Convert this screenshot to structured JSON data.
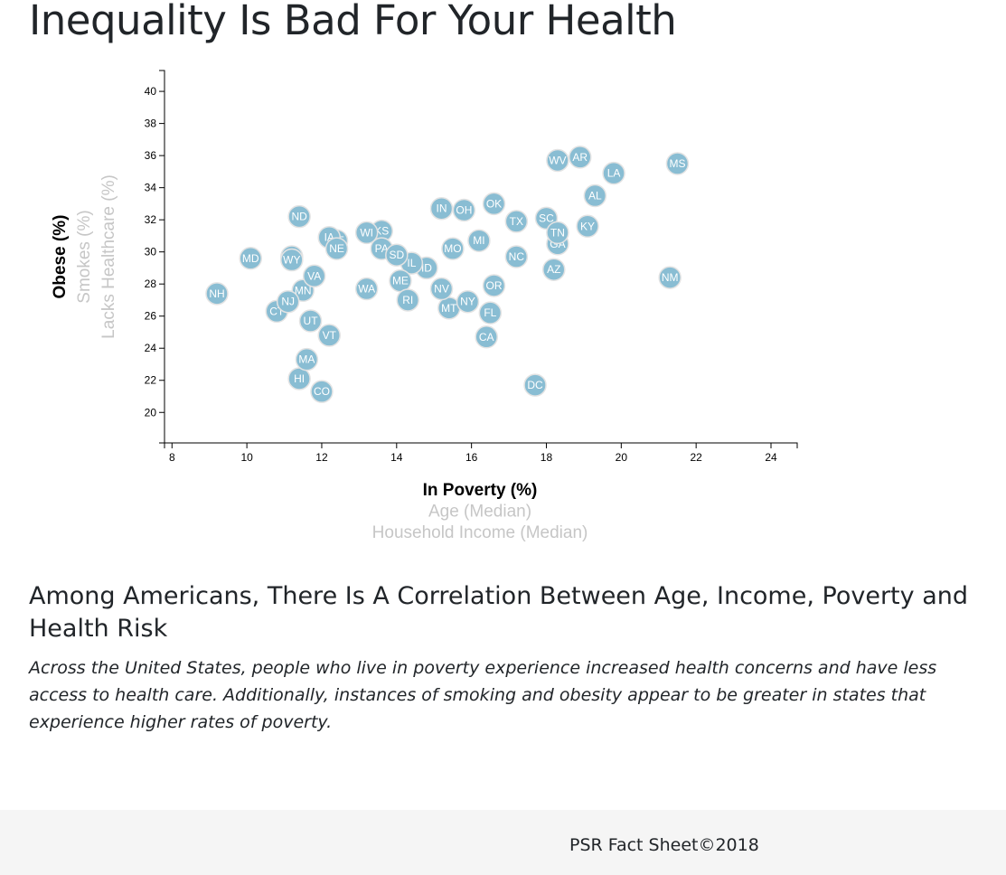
{
  "page": {
    "title": "Inequality Is Bad For Your Health",
    "subheading": "Among Americans, There Is A Correlation Between Age, Income, Poverty and Health Risk",
    "description": "Across the United States, people who live in poverty experience increased health concerns and have less access to health care. Additionally, instances of smoking and obesity appear to be greater in states that experience higher rates of poverty.",
    "footer": "PSR Fact Sheet©2018"
  },
  "colors": {
    "point_fill": "#89bdd3",
    "point_stroke": "#e3e3e3",
    "active_axis_label": "#000000",
    "inactive_axis_label": "#c6c6c6",
    "footer_background": "#f5f5f5"
  },
  "chart_data": {
    "type": "scatter",
    "title": "",
    "x_axis_options": [
      {
        "label": "In Poverty (%)",
        "active": true
      },
      {
        "label": "Age (Median)",
        "active": false
      },
      {
        "label": "Household Income (Median)",
        "active": false
      }
    ],
    "y_axis_options": [
      {
        "label": "Obese (%)",
        "active": true
      },
      {
        "label": "Smokes (%)",
        "active": false
      },
      {
        "label": "Lacks Healthcare (%)",
        "active": false
      }
    ],
    "xlabel": "In Poverty (%)",
    "ylabel": "Obese (%)",
    "xlim": [
      7.8,
      24.7
    ],
    "ylim": [
      18.1,
      41.3
    ],
    "x_ticks": [
      8,
      10,
      12,
      14,
      16,
      18,
      20,
      22,
      24
    ],
    "y_ticks": [
      20,
      22,
      24,
      26,
      28,
      30,
      32,
      34,
      36,
      38,
      40
    ],
    "grid": false,
    "legend": "none",
    "points": [
      {
        "label": "AL",
        "x": 19.3,
        "y": 33.5
      },
      {
        "label": "AK",
        "x": 11.2,
        "y": 29.7
      },
      {
        "label": "AZ",
        "x": 18.2,
        "y": 28.9
      },
      {
        "label": "AR",
        "x": 18.9,
        "y": 35.9
      },
      {
        "label": "CA",
        "x": 16.4,
        "y": 24.7
      },
      {
        "label": "CO",
        "x": 12.0,
        "y": 21.3
      },
      {
        "label": "CT",
        "x": 10.8,
        "y": 26.3
      },
      {
        "label": "DE",
        "x": 12.4,
        "y": 30.7
      },
      {
        "label": "DC",
        "x": 17.7,
        "y": 21.7
      },
      {
        "label": "FL",
        "x": 16.5,
        "y": 26.2
      },
      {
        "label": "GA",
        "x": 18.3,
        "y": 30.5
      },
      {
        "label": "HI",
        "x": 11.4,
        "y": 22.1
      },
      {
        "label": "ID",
        "x": 14.8,
        "y": 29.0
      },
      {
        "label": "IL",
        "x": 14.4,
        "y": 29.3
      },
      {
        "label": "IN",
        "x": 15.2,
        "y": 32.7
      },
      {
        "label": "IA",
        "x": 12.2,
        "y": 30.9
      },
      {
        "label": "KS",
        "x": 13.6,
        "y": 31.3
      },
      {
        "label": "KY",
        "x": 19.1,
        "y": 31.6
      },
      {
        "label": "LA",
        "x": 19.8,
        "y": 34.9
      },
      {
        "label": "ME",
        "x": 14.1,
        "y": 28.2
      },
      {
        "label": "MD",
        "x": 10.1,
        "y": 29.6
      },
      {
        "label": "MA",
        "x": 11.6,
        "y": 23.3
      },
      {
        "label": "MI",
        "x": 16.2,
        "y": 30.7
      },
      {
        "label": "MN",
        "x": 11.5,
        "y": 27.6
      },
      {
        "label": "MS",
        "x": 21.5,
        "y": 35.5
      },
      {
        "label": "MO",
        "x": 15.5,
        "y": 30.2
      },
      {
        "label": "MT",
        "x": 15.4,
        "y": 26.5
      },
      {
        "label": "NE",
        "x": 12.4,
        "y": 30.2
      },
      {
        "label": "NV",
        "x": 15.2,
        "y": 27.7
      },
      {
        "label": "NH",
        "x": 9.2,
        "y": 27.4
      },
      {
        "label": "NJ",
        "x": 11.1,
        "y": 26.9
      },
      {
        "label": "NM",
        "x": 21.3,
        "y": 28.4
      },
      {
        "label": "NY",
        "x": 15.9,
        "y": 26.9
      },
      {
        "label": "NC",
        "x": 17.2,
        "y": 29.7
      },
      {
        "label": "ND",
        "x": 11.4,
        "y": 32.2
      },
      {
        "label": "OH",
        "x": 15.8,
        "y": 32.6
      },
      {
        "label": "OK",
        "x": 16.6,
        "y": 33.0
      },
      {
        "label": "OR",
        "x": 16.6,
        "y": 27.9
      },
      {
        "label": "PA",
        "x": 13.6,
        "y": 30.2
      },
      {
        "label": "RI",
        "x": 14.3,
        "y": 27.0
      },
      {
        "label": "SC",
        "x": 18.0,
        "y": 32.1
      },
      {
        "label": "SD",
        "x": 14.0,
        "y": 29.8
      },
      {
        "label": "TN",
        "x": 18.3,
        "y": 31.2
      },
      {
        "label": "TX",
        "x": 17.2,
        "y": 31.9
      },
      {
        "label": "UT",
        "x": 11.7,
        "y": 25.7
      },
      {
        "label": "VT",
        "x": 12.2,
        "y": 24.8
      },
      {
        "label": "VA",
        "x": 11.8,
        "y": 28.5
      },
      {
        "label": "WA",
        "x": 13.2,
        "y": 27.7
      },
      {
        "label": "WV",
        "x": 18.3,
        "y": 35.7
      },
      {
        "label": "WI",
        "x": 13.2,
        "y": 31.2
      },
      {
        "label": "WY",
        "x": 11.2,
        "y": 29.5
      }
    ]
  }
}
